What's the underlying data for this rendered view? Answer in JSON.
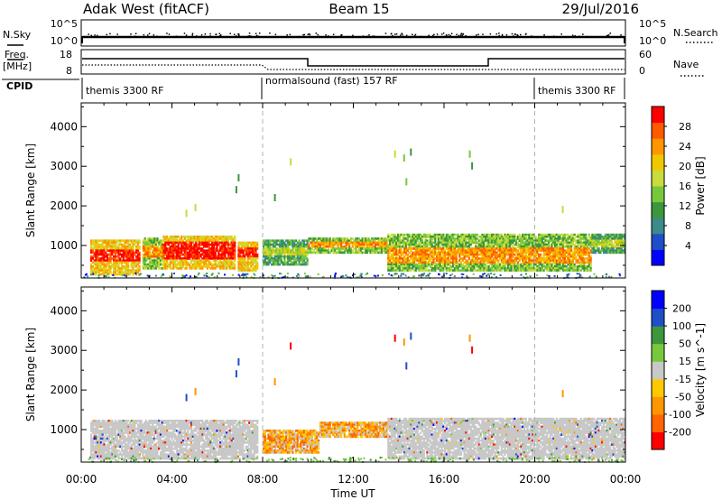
{
  "header": {
    "station": "Adak West (fitACF)",
    "beam": "Beam 15",
    "date": "29/Jul/2016"
  },
  "top_panels": {
    "nsky_label": "N.Sky",
    "nsky_ticks": [
      "10^5",
      "10^0"
    ],
    "nsearch_label": "N.Search",
    "nsearch_ticks": [
      "10^5",
      "10^0"
    ],
    "freq_label": "Freq.",
    "freq_unit": "[MHz]",
    "freq_ticks": [
      "18",
      "8"
    ],
    "nave_label": "Nave",
    "nave_ticks": [
      "60",
      "0"
    ],
    "cpid_label": "CPID",
    "cpid_segments": [
      {
        "label": "themis 3300 RF",
        "start_hour": 0,
        "end_hour": 8
      },
      {
        "label": "normalsound (fast) 157 RF",
        "start_hour": 8,
        "end_hour": 20
      },
      {
        "label": "themis 3300 RF",
        "start_hour": 20,
        "end_hour": 24
      }
    ]
  },
  "chart_data": [
    {
      "type": "heatmap",
      "name": "power",
      "ylabel": "Slant Range [km]",
      "yticks": [
        1000,
        2000,
        3000,
        4000
      ],
      "ylim": [
        180,
        4600
      ],
      "xlim": [
        0,
        24
      ],
      "colorbar": {
        "label": "Power [dB]",
        "ticks": [
          "28",
          "24",
          "20",
          "16",
          "12",
          "8",
          "4"
        ],
        "colors": [
          "#0000ff",
          "#1e4ec8",
          "#3c8a8a",
          "#3c963c",
          "#78c83c",
          "#c8dc3c",
          "#f0c800",
          "#ff9600",
          "#ff5a00",
          "#ff0000"
        ]
      },
      "regions": [
        {
          "hours": [
            0.4,
            2.6
          ],
          "range_km": [
            250,
            1150
          ],
          "core": [
            500,
            800
          ],
          "level": "high"
        },
        {
          "hours": [
            2.7,
            3.6
          ],
          "range_km": [
            400,
            1200
          ],
          "core": [
            600,
            900
          ],
          "level": "mid"
        },
        {
          "hours": [
            3.6,
            6.8
          ],
          "range_km": [
            400,
            1250
          ],
          "core": [
            550,
            1000
          ],
          "level": "high"
        },
        {
          "hours": [
            6.9,
            7.8
          ],
          "range_km": [
            350,
            1100
          ],
          "core": [
            500,
            750
          ],
          "level": "high"
        },
        {
          "hours": [
            8.0,
            10.0
          ],
          "range_km": [
            500,
            1150
          ],
          "core": [
            700,
            900
          ],
          "level": "low"
        },
        {
          "hours": [
            10.0,
            13.5
          ],
          "range_km": [
            800,
            1200
          ],
          "core": [
            900,
            1050
          ],
          "level": "mid"
        },
        {
          "hours": [
            13.5,
            22.5
          ],
          "range_km": [
            350,
            1300
          ],
          "core": [
            700,
            1100
          ],
          "level": "mid"
        },
        {
          "hours": [
            22.5,
            24.0
          ],
          "range_km": [
            800,
            1300
          ],
          "core": [
            950,
            1150
          ],
          "level": "low"
        }
      ]
    },
    {
      "type": "heatmap",
      "name": "velocity",
      "ylabel": "Slant Range [km]",
      "yticks": [
        1000,
        2000,
        3000,
        4000
      ],
      "ylim": [
        180,
        4600
      ],
      "xlim": [
        0,
        24
      ],
      "xticks": [
        "00:00",
        "04:00",
        "08:00",
        "12:00",
        "16:00",
        "20:00",
        "00:00"
      ],
      "xlabel": "Time UT",
      "colorbar": {
        "label": "Velocity [m s^-1]",
        "ticks": [
          "200",
          "100",
          "50",
          "15",
          "-15",
          "-50",
          "-100",
          "-200"
        ],
        "colors": [
          "#ff0000",
          "#ff6400",
          "#ff9600",
          "#ffc800",
          "#c8c8c8",
          "#78c83c",
          "#3c963c",
          "#1e4ec8",
          "#0000ff"
        ]
      },
      "regions": [
        {
          "hours": [
            0.4,
            7.8
          ],
          "range_km": [
            250,
            1250
          ],
          "value": "ground_scatter"
        },
        {
          "hours": [
            8.0,
            10.5
          ],
          "range_km": [
            400,
            1000
          ],
          "value": "negative"
        },
        {
          "hours": [
            10.5,
            13.5
          ],
          "range_km": [
            800,
            1200
          ],
          "value": "negative"
        },
        {
          "hours": [
            13.5,
            24.0
          ],
          "range_km": [
            250,
            1300
          ],
          "value": "ground_scatter"
        }
      ]
    }
  ]
}
